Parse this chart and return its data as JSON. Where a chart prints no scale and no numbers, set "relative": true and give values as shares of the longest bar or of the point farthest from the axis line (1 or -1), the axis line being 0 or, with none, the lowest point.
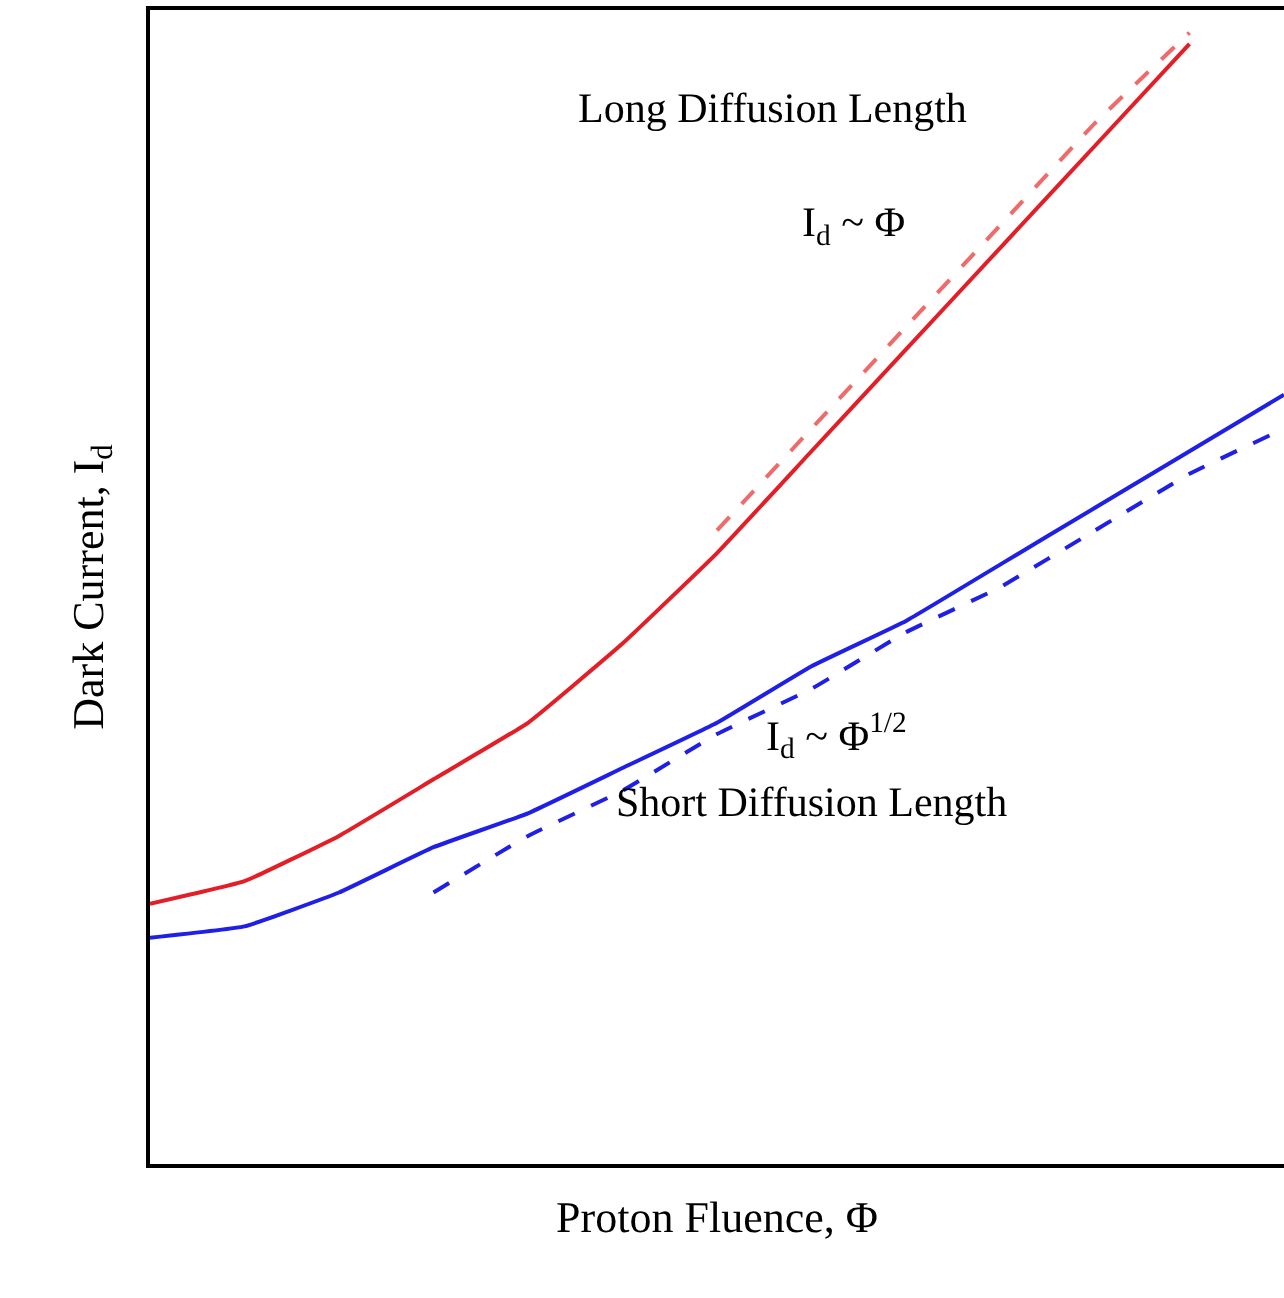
{
  "chart_data": {
    "type": "line",
    "relative": true,
    "xlabel": "Proton Fluence, Φ",
    "ylabel": "Dark Current, I$_{d}$",
    "categories": [
      null,
      null,
      null,
      null,
      null,
      null,
      null,
      null,
      null,
      null,
      null,
      null,
      null
    ],
    "series": [
      {
        "color": "#e41e26",
        "line_style": "solid",
        "values": [
          0.23,
          0.25,
          0.29,
          0.34,
          0.39,
          0.46,
          0.54,
          0.63,
          0.72,
          0.81,
          0.9,
          0.99,
          null
        ]
      },
      {
        "color": "#f06a6a",
        "line_style": "dashed",
        "values": [
          null,
          null,
          null,
          null,
          null,
          null,
          0.56,
          0.65,
          0.74,
          0.83,
          0.92,
          1.0,
          null
        ]
      },
      {
        "color": "#1f1fe6",
        "line_style": "solid",
        "values": [
          0.2,
          0.21,
          0.24,
          0.28,
          0.31,
          0.35,
          0.39,
          0.44,
          0.48,
          0.53,
          0.58,
          0.63,
          0.68
        ]
      },
      {
        "color": "#1f1fe6",
        "line_style": "dashed",
        "values": [
          null,
          null,
          null,
          0.24,
          0.29,
          0.33,
          0.38,
          0.42,
          0.47,
          0.51,
          0.56,
          0.61,
          0.65
        ]
      }
    ],
    "annotations": [
      "Long Diffusion Length",
      "I$_{d}$ ~ Φ",
      "I$_{d}$ ~ Φ$^{1/2}$",
      "Short Diffusion Length"
    ],
    "marker": "none"
  }
}
